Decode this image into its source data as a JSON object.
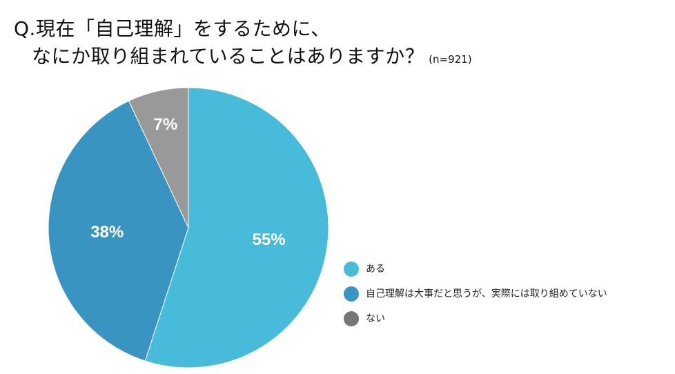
{
  "title": {
    "line1": "Q.現在「自己理解」をするために、",
    "line2": "なにか取り組まれていることはありますか？",
    "note": "(n=921)"
  },
  "chart_data": {
    "type": "pie",
    "slices": [
      {
        "label": "ある",
        "value": 55,
        "display": "55%",
        "color": "#47BBD9"
      },
      {
        "label": "自己理解は大事だと思うが、実際には取り組めていない",
        "value": 38,
        "display": "38%",
        "color": "#3A94C2"
      },
      {
        "label": "ない",
        "value": 7,
        "display": "7%",
        "color": "#999999"
      }
    ],
    "start": "12 o'clock",
    "direction": "clockwise",
    "legend_position": "bottom-right",
    "legend_marker_colors": [
      "#47BBD9",
      "#3A94C2",
      "#777777"
    ]
  }
}
